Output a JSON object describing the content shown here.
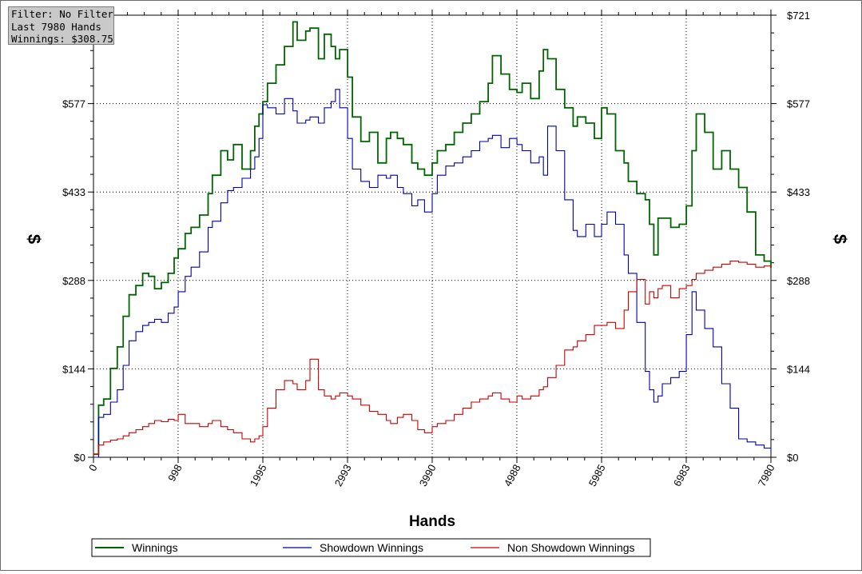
{
  "info_box": {
    "filter": "Filter: No Filter",
    "hands": "Last 7980 Hands",
    "winnings": "Winnings: $308.75"
  },
  "chart_data": {
    "type": "line",
    "title": "",
    "xlabel": "Hands",
    "ylabel": "$",
    "ylabel_right": "$",
    "xlim": [
      0,
      7980
    ],
    "ylim": [
      0,
      721
    ],
    "x_ticks": [
      "0",
      "998",
      "1995",
      "2993",
      "3990",
      "4988",
      "5985",
      "6983",
      "7980"
    ],
    "y_ticks": [
      "$0",
      "$144",
      "$288",
      "$433",
      "$577",
      "$721"
    ],
    "grid": true,
    "legend_position": "bottom",
    "series": [
      {
        "name": "Winnings",
        "color": "#006400",
        "x": [
          0,
          60,
          120,
          200,
          280,
          350,
          420,
          500,
          580,
          650,
          720,
          800,
          880,
          950,
          998,
          1080,
          1150,
          1250,
          1350,
          1400,
          1500,
          1580,
          1650,
          1750,
          1850,
          1900,
          1950,
          1995,
          2050,
          2150,
          2250,
          2350,
          2400,
          2500,
          2550,
          2650,
          2720,
          2800,
          2850,
          2900,
          2993,
          3050,
          3150,
          3250,
          3350,
          3450,
          3500,
          3580,
          3650,
          3750,
          3820,
          3900,
          3990,
          4050,
          4150,
          4250,
          4350,
          4450,
          4550,
          4650,
          4700,
          4800,
          4900,
          4988,
          5050,
          5150,
          5250,
          5300,
          5350,
          5450,
          5550,
          5650,
          5700,
          5800,
          5900,
          5985,
          6050,
          6150,
          6250,
          6300,
          6400,
          6500,
          6550,
          6600,
          6650,
          6700,
          6800,
          6900,
          6983,
          7050,
          7100,
          7200,
          7300,
          7400,
          7500,
          7600,
          7700,
          7800,
          7900,
          7980
        ],
        "y": [
          5,
          85,
          95,
          145,
          180,
          230,
          265,
          280,
          300,
          295,
          275,
          285,
          300,
          325,
          340,
          365,
          375,
          395,
          430,
          460,
          500,
          485,
          510,
          470,
          500,
          540,
          560,
          580,
          610,
          640,
          670,
          710,
          680,
          695,
          700,
          650,
          690,
          670,
          650,
          665,
          620,
          555,
          515,
          530,
          480,
          520,
          530,
          520,
          510,
          480,
          470,
          460,
          480,
          500,
          510,
          530,
          545,
          560,
          580,
          610,
          655,
          625,
          600,
          595,
          610,
          585,
          630,
          665,
          650,
          600,
          570,
          540,
          555,
          545,
          520,
          570,
          560,
          500,
          480,
          450,
          430,
          420,
          380,
          330,
          390,
          390,
          375,
          380,
          410,
          500,
          560,
          530,
          470,
          500,
          470,
          440,
          400,
          330,
          320,
          308.75
        ]
      },
      {
        "name": "Showdown Winnings",
        "color": "#0000aa",
        "x": [
          0,
          60,
          120,
          200,
          280,
          350,
          420,
          500,
          580,
          650,
          720,
          800,
          880,
          950,
          998,
          1080,
          1150,
          1250,
          1350,
          1400,
          1500,
          1580,
          1650,
          1750,
          1850,
          1900,
          1950,
          1995,
          2050,
          2150,
          2250,
          2350,
          2400,
          2500,
          2550,
          2650,
          2720,
          2800,
          2850,
          2900,
          2993,
          3050,
          3150,
          3250,
          3350,
          3450,
          3500,
          3580,
          3650,
          3750,
          3820,
          3900,
          3990,
          4050,
          4150,
          4250,
          4350,
          4450,
          4550,
          4650,
          4700,
          4800,
          4900,
          4988,
          5050,
          5150,
          5250,
          5300,
          5350,
          5450,
          5550,
          5650,
          5700,
          5800,
          5900,
          5985,
          6050,
          6150,
          6250,
          6300,
          6400,
          6500,
          6550,
          6600,
          6650,
          6700,
          6800,
          6900,
          6983,
          7050,
          7100,
          7200,
          7300,
          7400,
          7500,
          7600,
          7700,
          7800,
          7900,
          7980
        ],
        "y": [
          0,
          65,
          70,
          90,
          110,
          150,
          190,
          205,
          215,
          220,
          225,
          220,
          235,
          245,
          270,
          295,
          310,
          335,
          375,
          385,
          415,
          435,
          440,
          455,
          470,
          490,
          520,
          575,
          570,
          560,
          585,
          565,
          545,
          550,
          555,
          545,
          570,
          580,
          600,
          570,
          520,
          470,
          450,
          440,
          460,
          455,
          460,
          440,
          430,
          410,
          420,
          400,
          430,
          460,
          475,
          480,
          490,
          500,
          515,
          520,
          525,
          505,
          520,
          510,
          500,
          480,
          490,
          460,
          540,
          500,
          420,
          370,
          360,
          380,
          360,
          380,
          400,
          380,
          330,
          300,
          220,
          140,
          110,
          90,
          100,
          120,
          130,
          140,
          200,
          270,
          240,
          210,
          180,
          120,
          80,
          30,
          25,
          20,
          15,
          10
        ]
      },
      {
        "name": "Non Showdown Winnings",
        "color": "#cc0000",
        "x": [
          0,
          60,
          120,
          200,
          280,
          350,
          420,
          500,
          580,
          650,
          720,
          800,
          880,
          950,
          998,
          1080,
          1150,
          1250,
          1350,
          1400,
          1500,
          1580,
          1650,
          1750,
          1850,
          1900,
          1950,
          1995,
          2050,
          2150,
          2250,
          2350,
          2400,
          2500,
          2550,
          2650,
          2720,
          2800,
          2850,
          2900,
          2993,
          3050,
          3150,
          3250,
          3350,
          3450,
          3500,
          3580,
          3650,
          3750,
          3820,
          3900,
          3990,
          4050,
          4150,
          4250,
          4350,
          4450,
          4550,
          4650,
          4700,
          4800,
          4900,
          4988,
          5050,
          5150,
          5250,
          5300,
          5350,
          5450,
          5550,
          5650,
          5700,
          5800,
          5900,
          5985,
          6050,
          6150,
          6250,
          6300,
          6400,
          6500,
          6550,
          6600,
          6650,
          6700,
          6800,
          6900,
          6983,
          7050,
          7100,
          7200,
          7300,
          7400,
          7500,
          7600,
          7700,
          7800,
          7900,
          7980
        ],
        "y": [
          5,
          20,
          25,
          28,
          30,
          35,
          40,
          45,
          50,
          55,
          60,
          58,
          62,
          60,
          70,
          55,
          55,
          50,
          55,
          60,
          50,
          45,
          40,
          30,
          25,
          30,
          35,
          50,
          80,
          110,
          125,
          120,
          110,
          125,
          160,
          110,
          100,
          95,
          100,
          105,
          100,
          95,
          85,
          75,
          70,
          60,
          55,
          65,
          70,
          60,
          45,
          40,
          50,
          55,
          60,
          70,
          80,
          90,
          95,
          100,
          105,
          95,
          90,
          100,
          95,
          100,
          110,
          115,
          130,
          150,
          175,
          180,
          190,
          200,
          215,
          215,
          220,
          210,
          240,
          270,
          290,
          250,
          270,
          260,
          275,
          280,
          260,
          275,
          280,
          290,
          300,
          305,
          310,
          315,
          320,
          318,
          315,
          310,
          312,
          308.75
        ]
      }
    ]
  }
}
